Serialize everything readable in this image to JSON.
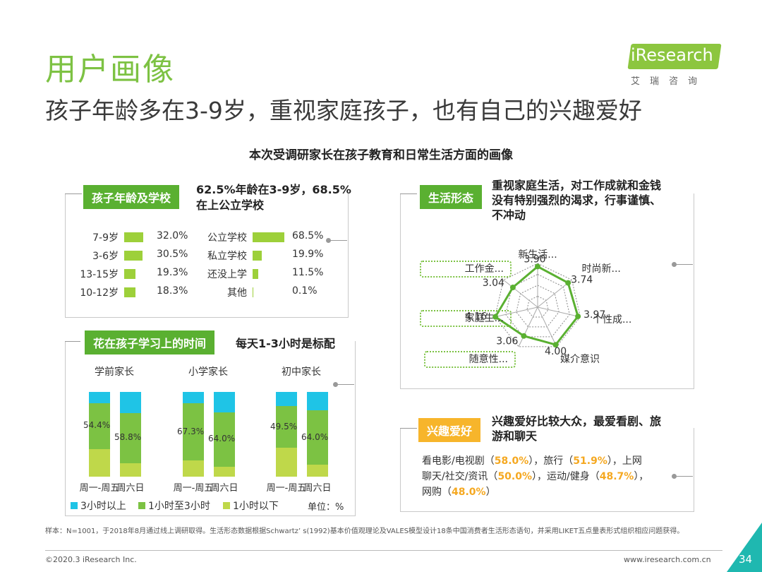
{
  "page": {
    "title": "用户画像",
    "subtitle": "孩子年龄多在3-9岁，重视家庭孩子，也有自己的兴趣爱好",
    "center_title": "本次受调研家长在孩子教育和日常生活方面的画像",
    "page_number": "34",
    "copyright": "©2020.3 iResearch Inc.",
    "website": "www.iresearch.com.cn",
    "footnote": "样本：N=1001，于2018年8月通过线上调研取得。生活形态数据根据Schwartz’ s(1992)基本价值观理论及VALES模型设计18条中国消费者生活形态语句，并采用LIKET五点量表形式组织相应问题获得。"
  },
  "logo": {
    "name": "iResearch",
    "sub": "艾瑞咨询",
    "color": "#8cc63f"
  },
  "colors": {
    "accent_green": "#7dc243",
    "tag_green": "#5ab031",
    "tag_orange": "#f7b52b",
    "cyan": "#1fc4e6",
    "mid_green": "#7cc243",
    "lime": "#bfd84a",
    "highlight": "#f5a820"
  },
  "panels": {
    "age": {
      "tag": "孩子年龄及学校",
      "headline_1": "62.5%年龄在3-9岁，68.5%",
      "headline_2": "在上公立学校"
    },
    "lifestyle": {
      "tag": "生活形态",
      "headline_1": "重视家庭生活，对工作成就和金钱",
      "headline_2": "没有特别强烈的渴求，行事谨慎、",
      "headline_3": "不冲动"
    },
    "time": {
      "tag": "花在孩子学习上的时间",
      "headline": "每天1-3小时是标配"
    },
    "hobby": {
      "tag": "兴趣爱好",
      "headline_1": "兴趣爱好比较大众，最爱看剧、旅",
      "headline_2": "游和聊天",
      "line1_a": "看电影/电视剧（",
      "line1_v1": "58.0%",
      "line1_b": "），旅行（",
      "line1_v2": "51.9%",
      "line1_c": "），上网",
      "line2_a": "聊天/社交/资讯（",
      "line2_v1": "50.0%",
      "line2_b": "），运动/健身（",
      "line2_v2": "48.7%",
      "line2_c": "），",
      "line3_a": "网购（",
      "line3_v1": "48.0%",
      "line3_b": "）"
    }
  },
  "chart_data": [
    {
      "type": "bar",
      "orientation": "horizontal",
      "categories": [
        "7-9岁",
        "3-6岁",
        "13-15岁",
        "10-12岁"
      ],
      "values": [
        32.0,
        30.5,
        19.3,
        18.3
      ],
      "labels": [
        "32.0%",
        "30.5%",
        "19.3%",
        "18.3%"
      ]
    },
    {
      "type": "bar",
      "orientation": "horizontal",
      "categories": [
        "公立学校",
        "私立学校",
        "还没上学",
        "其他"
      ],
      "values": [
        68.5,
        19.9,
        11.5,
        0.1
      ],
      "labels": [
        "68.5%",
        "19.9%",
        "11.5%",
        "0.1%"
      ]
    },
    {
      "type": "bar",
      "stacked": true,
      "groups": [
        "学前家长",
        "小学家长",
        "初中家长"
      ],
      "categories": [
        "周一-周五",
        "周六日"
      ],
      "series": [
        {
          "name": "3小时以上",
          "color": "#1fc4e6"
        },
        {
          "name": "1小时至3小时",
          "color": "#7cc243"
        },
        {
          "name": "1小时以下",
          "color": "#bfd84a"
        }
      ],
      "stacks": [
        {
          "group": 0,
          "category": 0,
          "values": [
            13.0,
            54.4,
            32.6
          ],
          "label": "54.4%"
        },
        {
          "group": 0,
          "category": 1,
          "values": [
            25.0,
            58.8,
            16.2
          ],
          "label": "58.8%"
        },
        {
          "group": 1,
          "category": 0,
          "values": [
            13.7,
            67.3,
            19.0
          ],
          "label": "67.3%"
        },
        {
          "group": 1,
          "category": 1,
          "values": [
            24.0,
            64.0,
            12.0
          ],
          "label": "64.0%"
        },
        {
          "group": 2,
          "category": 0,
          "values": [
            16.5,
            49.5,
            34.0
          ],
          "label": "49.5%"
        },
        {
          "group": 2,
          "category": 1,
          "values": [
            22.0,
            64.0,
            14.0
          ],
          "label": "64.0%"
        }
      ],
      "category_labels": [
        "周一-周五",
        "周六日",
        "周一-周五",
        "周六日",
        "周一-周五",
        "周六日"
      ],
      "unit": "单位：%"
    },
    {
      "type": "radar",
      "axes": [
        "新生活...",
        "时尚新...",
        "个性成...",
        "媒介意识",
        "随意性...",
        "家庭生...",
        "工作金..."
      ],
      "values": [
        3.9,
        3.74,
        3.97,
        4.0,
        3.06,
        4.16,
        3.04
      ],
      "labels": [
        "3.90",
        "3.74",
        "3.97",
        "4.00",
        "3.06",
        "4.16",
        "3.04"
      ]
    }
  ]
}
